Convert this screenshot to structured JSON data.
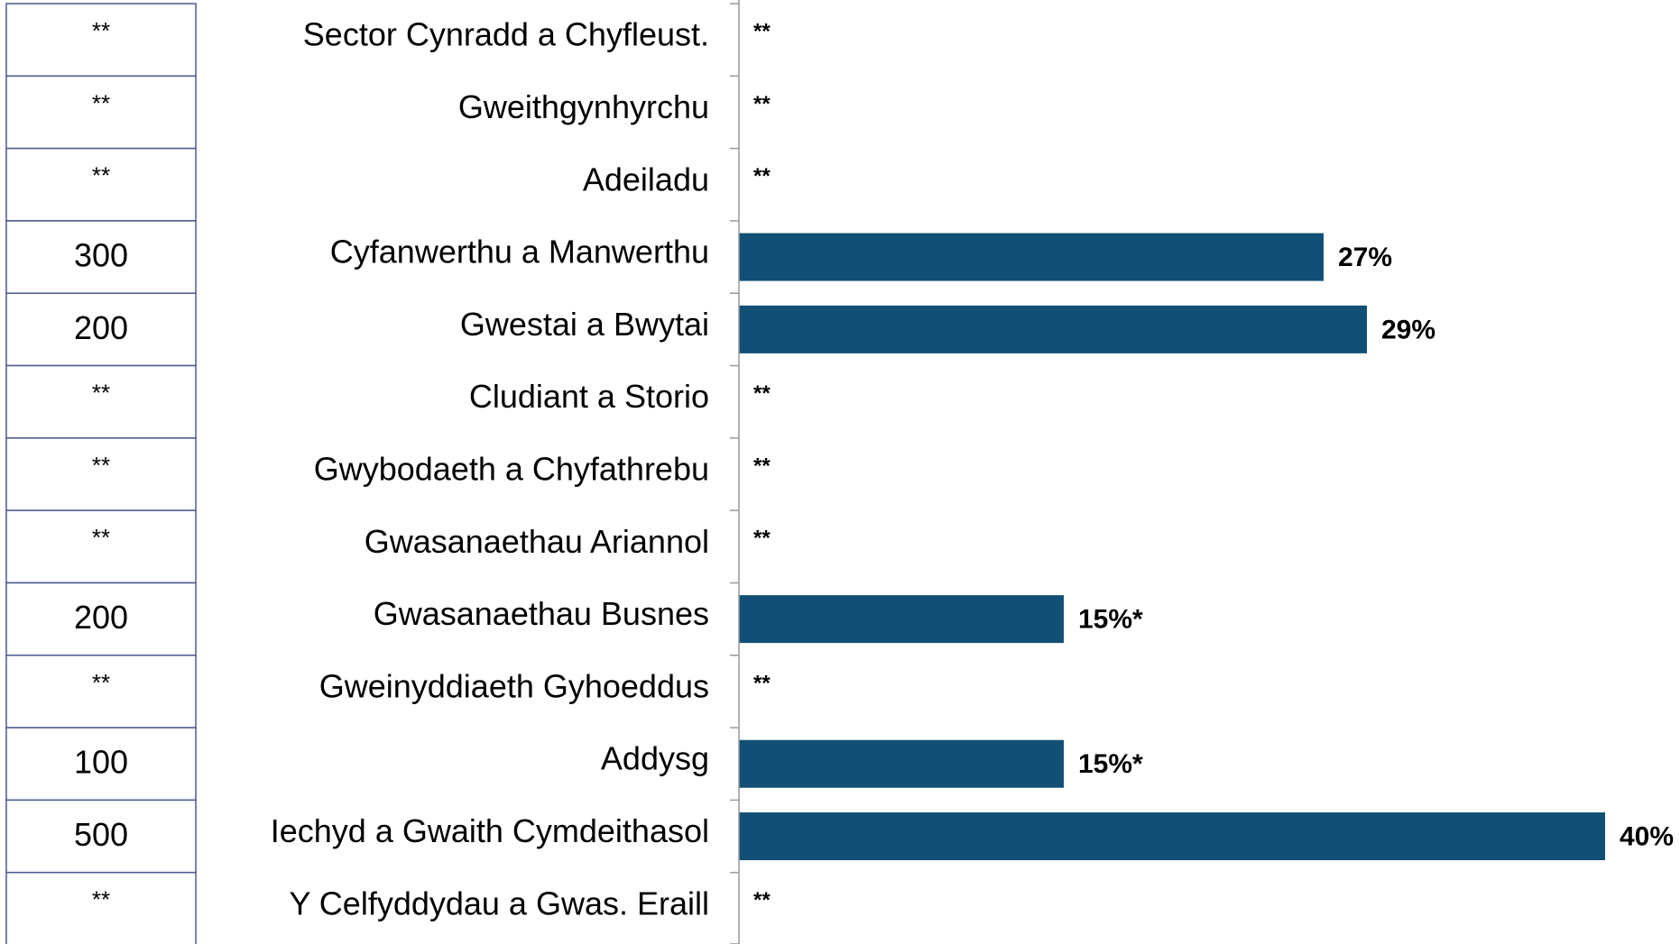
{
  "chart_data": {
    "type": "bar",
    "categories": [
      "Sector Cynradd a Chyfleust.",
      "Gweithgynhyrchu",
      "Adeiladu",
      "Cyfanwerthu a Manwerthu",
      "Gwestai a Bwytai",
      "Cludiant a Storio",
      "Gwybodaeth a Chyfathrebu",
      "Gwasanaethau Ariannol",
      "Gwasanaethau Busnes",
      "Gweinyddiaeth Gyhoeddus",
      "Addysg",
      "Iechyd a Gwaith Cymdeithasol",
      "Y Celfyddydau a Gwas. Eraill"
    ],
    "values": [
      null,
      null,
      null,
      27,
      29,
      null,
      null,
      null,
      15,
      null,
      15,
      40,
      null
    ],
    "value_labels": [
      "**",
      "**",
      "**",
      "27%",
      "29%",
      "**",
      "**",
      "**",
      "15%*",
      "**",
      "15%*",
      "40%",
      "**"
    ],
    "counts": [
      "**",
      "**",
      "**",
      "300",
      "200",
      "**",
      "**",
      "**",
      "200",
      "**",
      "100",
      "500",
      "**"
    ],
    "color": "#124f74",
    "xlim": [
      0,
      40
    ]
  }
}
